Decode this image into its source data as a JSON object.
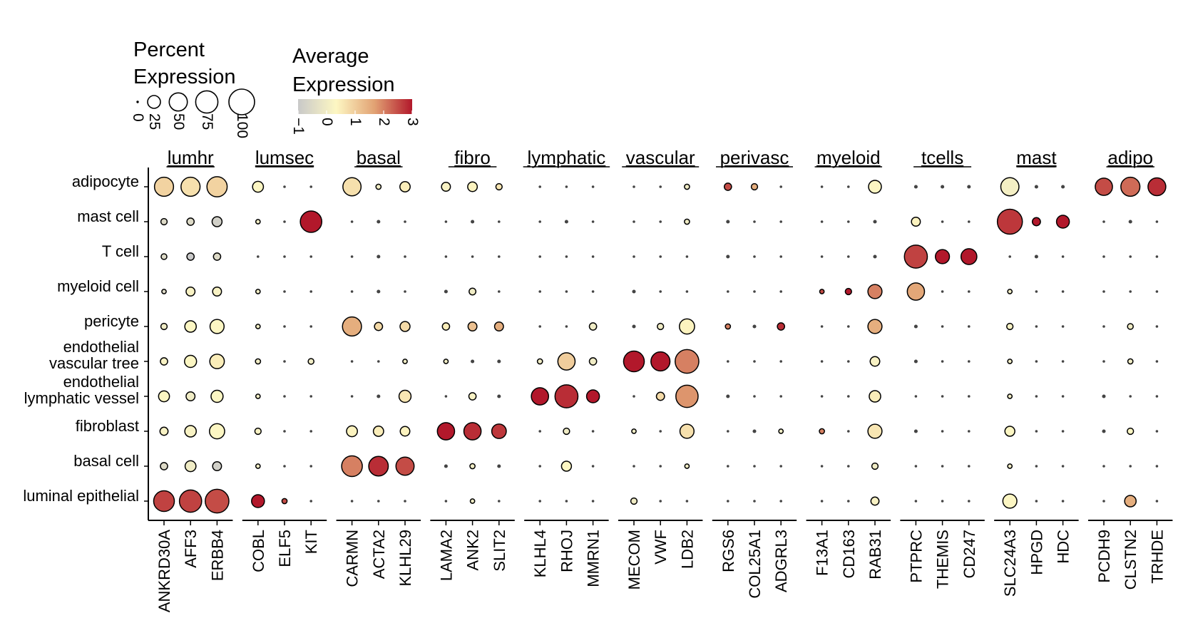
{
  "chart_data": {
    "type": "dotplot",
    "legend_size": {
      "title_lines": [
        "Percent",
        "Expression"
      ],
      "breaks": [
        0,
        25,
        50,
        75,
        100
      ],
      "break_labels": [
        "0",
        "25",
        "50",
        "75",
        "100"
      ]
    },
    "legend_color": {
      "title_lines": [
        "Average",
        "Expression"
      ],
      "range": [
        -1,
        3
      ],
      "ticks": [
        -1,
        0,
        1,
        2,
        3
      ],
      "tick_labels": [
        "−1",
        "0",
        "1",
        "2",
        "3"
      ],
      "colors": [
        "#c9c9c9",
        "#fdf7c3",
        "#e2a374",
        "#b2182b"
      ]
    },
    "rows": [
      "adipocyte",
      "mast cell",
      "T cell",
      "myeloid cell",
      "pericyte",
      "endothelial vascular tree",
      "endothelial lymphatic vessel",
      "fibroblast",
      "basal cell",
      "luminal epithelial"
    ],
    "row_label_lines": [
      [
        "adipocyte"
      ],
      [
        "mast cell"
      ],
      [
        "T cell"
      ],
      [
        "myeloid cell"
      ],
      [
        "pericyte"
      ],
      [
        "endothelial",
        "vascular tree"
      ],
      [
        "endothelial",
        "lymphatic vessel"
      ],
      [
        "fibroblast"
      ],
      [
        "basal cell"
      ],
      [
        "luminal epithelial"
      ]
    ],
    "groups": [
      {
        "name": "lumhr",
        "genes": [
          "ANKRD30A",
          "AFF3",
          "ERBB4"
        ]
      },
      {
        "name": "lumsec",
        "genes": [
          "COBL",
          "ELF5",
          "KIT"
        ]
      },
      {
        "name": "basal",
        "genes": [
          "CARMN",
          "ACTA2",
          "KLHL29"
        ]
      },
      {
        "name": "fibro",
        "genes": [
          "LAMA2",
          "ANK2",
          "SLIT2"
        ]
      },
      {
        "name": "lymphatic",
        "genes": [
          "KLHL4",
          "RHOJ",
          "MMRN1"
        ]
      },
      {
        "name": "vascular",
        "genes": [
          "MECOM",
          "VWF",
          "LDB2"
        ]
      },
      {
        "name": "perivasc",
        "genes": [
          "RGS6",
          "COL25A1",
          "ADGRL3"
        ]
      },
      {
        "name": "myeloid",
        "genes": [
          "F13A1",
          "CD163",
          "RAB31"
        ]
      },
      {
        "name": "tcells",
        "genes": [
          "PTPRC",
          "THEMIS",
          "CD247"
        ]
      },
      {
        "name": "mast",
        "genes": [
          "SLC24A3",
          "HPGD",
          "HDC"
        ]
      },
      {
        "name": "adipo",
        "genes": [
          "PCDH9",
          "CLSTN2",
          "TRHDE"
        ]
      }
    ],
    "pct": [
      [
        55,
        55,
        62,
        18,
        1,
        1,
        50,
        4,
        16,
        12,
        14,
        6,
        1,
        1,
        1,
        1,
        1,
        4,
        8,
        6,
        1,
        1,
        1,
        25,
        2,
        2,
        2,
        50,
        2,
        2,
        45,
        55,
        48
      ],
      [
        6,
        8,
        15,
        3,
        1,
        70,
        1,
        2,
        1,
        1,
        2,
        1,
        1,
        2,
        1,
        1,
        1,
        4,
        2,
        1,
        1,
        1,
        1,
        2,
        12,
        1,
        1,
        95,
        10,
        25,
        1,
        2,
        1
      ],
      [
        5,
        8,
        8,
        1,
        1,
        1,
        1,
        2,
        1,
        1,
        1,
        1,
        1,
        1,
        1,
        1,
        1,
        1,
        2,
        1,
        1,
        1,
        1,
        2,
        80,
        30,
        38,
        1,
        2,
        1,
        1,
        1,
        1
      ],
      [
        3,
        12,
        12,
        3,
        1,
        1,
        1,
        2,
        1,
        2,
        7,
        1,
        1,
        1,
        1,
        2,
        1,
        1,
        1,
        1,
        1,
        3,
        6,
        30,
        45,
        1,
        1,
        3,
        1,
        1,
        1,
        1,
        1
      ],
      [
        6,
        20,
        30,
        3,
        1,
        1,
        55,
        10,
        15,
        8,
        12,
        12,
        1,
        1,
        8,
        2,
        6,
        35,
        4,
        2,
        8,
        1,
        1,
        30,
        2,
        1,
        1,
        6,
        1,
        1,
        1,
        5,
        1
      ],
      [
        8,
        22,
        32,
        4,
        1,
        5,
        1,
        1,
        3,
        3,
        2,
        2,
        4,
        45,
        8,
        65,
        55,
        85,
        1,
        1,
        1,
        1,
        1,
        14,
        2,
        1,
        1,
        3,
        1,
        1,
        1,
        4,
        1
      ],
      [
        18,
        12,
        22,
        3,
        1,
        1,
        1,
        2,
        22,
        1,
        8,
        2,
        45,
        80,
        25,
        1,
        10,
        75,
        2,
        1,
        1,
        1,
        1,
        20,
        1,
        1,
        1,
        3,
        1,
        1,
        2,
        1,
        1
      ],
      [
        10,
        20,
        35,
        6,
        1,
        1,
        18,
        16,
        14,
        45,
        45,
        32,
        1,
        6,
        1,
        3,
        1,
        30,
        1,
        2,
        3,
        4,
        1,
        30,
        2,
        1,
        1,
        15,
        1,
        1,
        2,
        6,
        1
      ],
      [
        8,
        18,
        12,
        3,
        1,
        1,
        65,
        58,
        50,
        2,
        4,
        2,
        1,
        15,
        1,
        1,
        1,
        3,
        1,
        1,
        1,
        1,
        1,
        6,
        1,
        1,
        1,
        3,
        1,
        1,
        1,
        1,
        1
      ],
      [
        65,
        75,
        85,
        25,
        4,
        1,
        1,
        1,
        1,
        1,
        3,
        1,
        1,
        1,
        1,
        6,
        1,
        1,
        1,
        1,
        1,
        1,
        1,
        10,
        1,
        1,
        1,
        30,
        1,
        1,
        1,
        20,
        1
      ]
    ],
    "avg": [
      [
        0.9,
        0.7,
        0.9,
        0.3,
        0.0,
        0.0,
        0.7,
        0.0,
        0.5,
        0.2,
        0.4,
        0.6,
        0.0,
        0.0,
        0.0,
        0.0,
        0.0,
        0.0,
        2.5,
        1.5,
        0.0,
        0.0,
        0.0,
        0.3,
        0.0,
        0.0,
        0.0,
        0.1,
        0.0,
        0.0,
        2.5,
        2.2,
        2.8
      ],
      [
        -0.5,
        -0.5,
        -0.8,
        0.0,
        0.0,
        3.0,
        0.0,
        0.0,
        0.0,
        0.0,
        0.0,
        0.0,
        0.0,
        0.0,
        0.0,
        0.0,
        0.0,
        0.0,
        0.0,
        0.0,
        0.0,
        0.0,
        0.0,
        0.0,
        0.4,
        0.0,
        0.0,
        2.7,
        3.0,
        3.0,
        0.0,
        0.0,
        0.0
      ],
      [
        -0.5,
        -1.0,
        -0.5,
        0.0,
        0.0,
        0.0,
        0.0,
        0.0,
        0.0,
        0.0,
        0.0,
        0.0,
        0.0,
        0.0,
        0.0,
        0.0,
        0.0,
        0.0,
        0.0,
        0.0,
        0.0,
        0.0,
        0.0,
        0.0,
        2.6,
        3.0,
        3.0,
        0.0,
        0.0,
        0.0,
        0.0,
        0.0,
        0.0
      ],
      [
        -0.5,
        0.2,
        0.2,
        0.0,
        0.0,
        0.0,
        0.0,
        0.0,
        0.0,
        0.0,
        0.0,
        0.0,
        0.0,
        0.0,
        0.0,
        0.0,
        0.0,
        0.0,
        0.0,
        0.0,
        0.0,
        2.5,
        3.0,
        2.0,
        1.6,
        0.0,
        0.0,
        0.0,
        0.0,
        0.0,
        0.0,
        0.0,
        0.0
      ],
      [
        0.0,
        0.3,
        0.3,
        0.0,
        0.0,
        0.0,
        1.5,
        0.8,
        0.8,
        0.5,
        1.2,
        1.5,
        0.0,
        0.0,
        0.0,
        0.0,
        0.0,
        0.4,
        2.0,
        0.0,
        2.8,
        0.0,
        0.0,
        1.5,
        0.0,
        0.0,
        0.0,
        0.2,
        0.0,
        0.0,
        0.0,
        0.0,
        0.0
      ],
      [
        0.2,
        0.3,
        0.5,
        0.0,
        0.0,
        0.0,
        0.0,
        0.0,
        0.0,
        0.0,
        0.0,
        0.0,
        0.0,
        1.0,
        0.0,
        3.0,
        3.0,
        2.0,
        0.0,
        0.0,
        0.0,
        0.0,
        0.0,
        0.2,
        0.0,
        0.0,
        0.0,
        0.0,
        0.0,
        0.0,
        0.0,
        0.0,
        0.0
      ],
      [
        0.3,
        0.0,
        0.3,
        0.0,
        0.0,
        0.0,
        0.0,
        0.0,
        0.6,
        0.0,
        0.2,
        0.0,
        3.0,
        2.8,
        3.0,
        0.0,
        0.8,
        1.8,
        0.0,
        0.0,
        0.0,
        0.0,
        0.0,
        0.5,
        0.0,
        0.0,
        0.0,
        0.0,
        0.0,
        0.0,
        0.0,
        0.0,
        0.0
      ],
      [
        0.2,
        0.2,
        0.3,
        0.2,
        0.0,
        0.0,
        0.4,
        0.5,
        0.4,
        3.0,
        2.8,
        2.7,
        0.0,
        0.0,
        0.0,
        0.0,
        0.0,
        0.7,
        0.0,
        0.0,
        0.0,
        2.0,
        0.0,
        0.6,
        0.0,
        0.0,
        0.0,
        0.3,
        0.0,
        0.0,
        0.0,
        0.3,
        0.0
      ],
      [
        -0.5,
        0.0,
        -0.8,
        0.0,
        0.0,
        0.0,
        2.0,
        2.8,
        2.5,
        0.0,
        0.0,
        0.0,
        0.0,
        0.3,
        0.0,
        0.0,
        0.0,
        0.0,
        0.0,
        0.0,
        0.0,
        0.0,
        0.0,
        0.0,
        0.0,
        0.0,
        0.0,
        0.0,
        0.0,
        0.0,
        0.0,
        0.0,
        0.0
      ],
      [
        2.6,
        2.6,
        2.5,
        3.0,
        2.5,
        0.0,
        0.0,
        0.0,
        0.0,
        0.0,
        0.0,
        0.0,
        0.0,
        0.0,
        0.0,
        0.0,
        0.0,
        0.0,
        0.0,
        0.0,
        0.0,
        0.0,
        0.0,
        0.2,
        0.0,
        0.0,
        0.0,
        0.3,
        0.0,
        0.0,
        0.0,
        1.5,
        0.0
      ]
    ]
  }
}
